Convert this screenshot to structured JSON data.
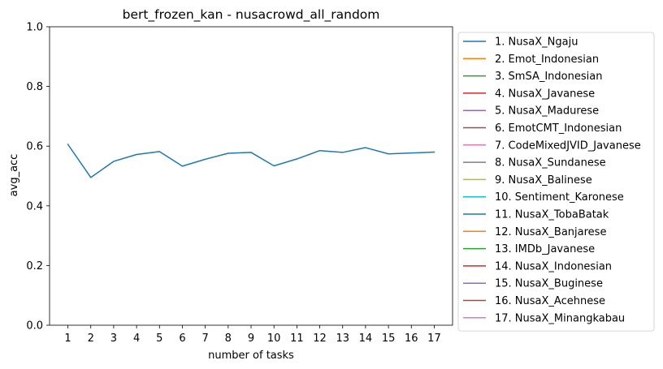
{
  "chart_data": {
    "type": "line",
    "title": "bert_frozen_kan - nusacrowd_all_random",
    "xlabel": "number of tasks",
    "ylabel": "avg_acc",
    "ylim": [
      0.0,
      1.0
    ],
    "xlim": [
      0.2,
      17.8
    ],
    "x_ticks": [
      "1",
      "2",
      "3",
      "4",
      "5",
      "6",
      "7",
      "8",
      "9",
      "10",
      "11",
      "12",
      "13",
      "14",
      "15",
      "16",
      "17"
    ],
    "y_ticks": [
      "0.0",
      "0.2",
      "0.4",
      "0.6",
      "0.8",
      "1.0"
    ],
    "grid": false,
    "legend_position": "outside-right",
    "series": [
      {
        "name": "1. NusaX_Ngaju",
        "color": "#1f77b4",
        "x": [
          1,
          2,
          3,
          4,
          5,
          6,
          7,
          8,
          9,
          10,
          11,
          12,
          13,
          14,
          15,
          16,
          17
        ],
        "values": [
          0.606,
          0.495,
          0.549,
          0.572,
          0.582,
          0.533,
          0.556,
          0.576,
          0.579,
          0.534,
          0.557,
          0.585,
          0.579,
          0.595,
          0.574,
          0.577,
          0.58
        ]
      },
      {
        "name": "2. Emot_Indonesian",
        "color": "#ff7f0e",
        "x": [],
        "values": []
      },
      {
        "name": "3. SmSA_Indonesian",
        "color": "#2ca02c",
        "x": [],
        "values": []
      },
      {
        "name": "4. NusaX_Javanese",
        "color": "#d62728",
        "x": [],
        "values": []
      },
      {
        "name": "5. NusaX_Madurese",
        "color": "#9467bd",
        "x": [],
        "values": []
      },
      {
        "name": "6. EmotCMT_Indonesian",
        "color": "#8c564b",
        "x": [],
        "values": []
      },
      {
        "name": "7. CodeMixedJVID_Javanese",
        "color": "#e377c2",
        "x": [],
        "values": []
      },
      {
        "name": "8. NusaX_Sundanese",
        "color": "#7f7f7f",
        "x": [],
        "values": []
      },
      {
        "name": "9. NusaX_Balinese",
        "color": "#bcbd22",
        "x": [],
        "values": []
      },
      {
        "name": "10. Sentiment_Karonese",
        "color": "#17becf",
        "x": [],
        "values": []
      },
      {
        "name": "11. NusaX_TobaBatak",
        "color": "#1f77b4",
        "x": [],
        "values": []
      },
      {
        "name": "12. NusaX_Banjarese",
        "color": "#ff7f0e",
        "x": [],
        "values": []
      },
      {
        "name": "13. IMDb_Javanese",
        "color": "#2ca02c",
        "x": [],
        "values": []
      },
      {
        "name": "14. NusaX_Indonesian",
        "color": "#d62728",
        "x": [],
        "values": []
      },
      {
        "name": "15. NusaX_Buginese",
        "color": "#9467bd",
        "x": [],
        "values": []
      },
      {
        "name": "16. NusaX_Acehnese",
        "color": "#8c564b",
        "x": [],
        "values": []
      },
      {
        "name": "17. NusaX_Minangkabau",
        "color": "#e377c2",
        "x": [],
        "values": []
      }
    ]
  }
}
